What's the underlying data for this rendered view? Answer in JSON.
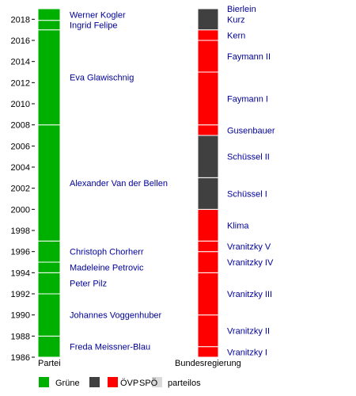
{
  "chart_data": {
    "type": "timeline",
    "ylim": [
      1986,
      2019
    ],
    "y_ticks": [
      1986,
      1988,
      1990,
      1992,
      1994,
      1996,
      1998,
      2000,
      2002,
      2004,
      2006,
      2008,
      2010,
      2012,
      2014,
      2016,
      2018
    ],
    "categories": [
      "Partei",
      "Bundesregierung"
    ],
    "parties": [
      {
        "key": "gruene",
        "label": "Grüne",
        "color": "#00b000"
      },
      {
        "key": "oevp",
        "label": "ÖVP",
        "color": "#404040"
      },
      {
        "key": "spoe",
        "label": "SPÖ",
        "color": "#ff0000"
      },
      {
        "key": "parteilos",
        "label": "parteilos",
        "color": "#d9d9d9"
      }
    ],
    "series": [
      {
        "name": "Partei",
        "segments": [
          {
            "label": "Freda Meissner-Blau",
            "start": 1986.0,
            "end": 1988.0,
            "party": "gruene"
          },
          {
            "label": "Johannes Voggenhuber",
            "start": 1988.0,
            "end": 1992.0,
            "party": "gruene"
          },
          {
            "label": "Peter Pilz",
            "start": 1992.0,
            "end": 1994.0,
            "party": "gruene"
          },
          {
            "label": "Madeleine Petrovic",
            "start": 1994.0,
            "end": 1995.0,
            "party": "gruene"
          },
          {
            "label": "Christoph Chorherr",
            "start": 1995.0,
            "end": 1997.0,
            "party": "gruene"
          },
          {
            "label": "Alexander Van der Bellen",
            "start": 1997.0,
            "end": 2008.0,
            "party": "gruene"
          },
          {
            "label": "Eva Glawischnig",
            "start": 2008.0,
            "end": 2017.0,
            "party": "gruene"
          },
          {
            "label": "Ingrid Felipe",
            "start": 2017.0,
            "end": 2017.9,
            "party": "gruene"
          },
          {
            "label": "Werner Kogler",
            "start": 2017.9,
            "end": 2019.0,
            "party": "gruene"
          }
        ]
      },
      {
        "name": "Bundesregierung",
        "segments": [
          {
            "label": "Vranitzky I",
            "start": 1986.0,
            "end": 1987.0,
            "party": "spoe"
          },
          {
            "label": "Vranitzky II",
            "start": 1987.0,
            "end": 1990.0,
            "party": "spoe"
          },
          {
            "label": "Vranitzky III",
            "start": 1990.0,
            "end": 1994.0,
            "party": "spoe"
          },
          {
            "label": "Vranitzky IV",
            "start": 1994.0,
            "end": 1996.0,
            "party": "spoe"
          },
          {
            "label": "Vranitzky V",
            "start": 1996.0,
            "end": 1997.0,
            "party": "spoe"
          },
          {
            "label": "Klima",
            "start": 1997.0,
            "end": 2000.0,
            "party": "spoe"
          },
          {
            "label": "Schüssel I",
            "start": 2000.0,
            "end": 2003.0,
            "party": "oevp"
          },
          {
            "label": "Schüssel II",
            "start": 2003.0,
            "end": 2007.0,
            "party": "oevp"
          },
          {
            "label": "Gusenbauer",
            "start": 2007.0,
            "end": 2008.0,
            "party": "spoe"
          },
          {
            "label": "Faymann I",
            "start": 2008.0,
            "end": 2013.0,
            "party": "spoe"
          },
          {
            "label": "Faymann II",
            "start": 2013.0,
            "end": 2016.0,
            "party": "spoe"
          },
          {
            "label": "Kern",
            "start": 2016.0,
            "end": 2017.0,
            "party": "spoe"
          },
          {
            "label": "Kurz",
            "start": 2017.0,
            "end": 2019.0,
            "party": "oevp"
          },
          {
            "label": "Bierlein",
            "start": 2019.0,
            "end": 2019.0,
            "party": "parteilos"
          }
        ]
      }
    ],
    "legend": {
      "placement": "bottom"
    }
  }
}
